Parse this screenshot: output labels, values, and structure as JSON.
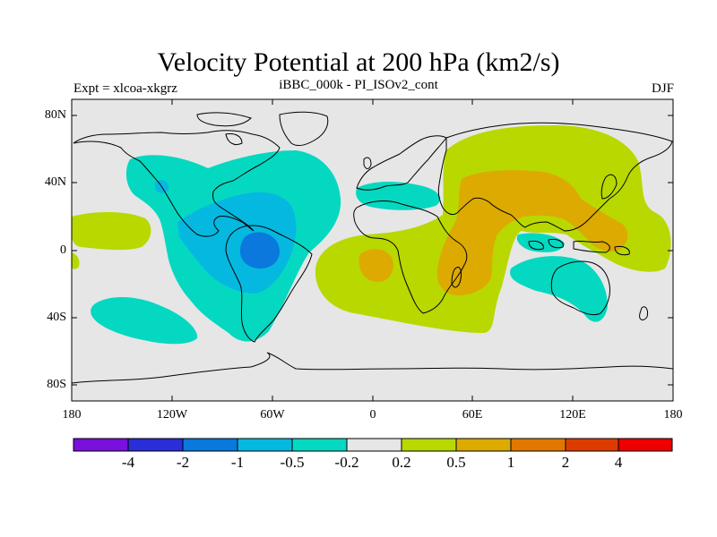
{
  "title": "Velocity Potential at 200 hPa (km2/s)",
  "subtitle_left": "Expt = xlcoa-xkgrz",
  "subtitle_center": "iBBC_000k - PI_ISOv2_cont",
  "subtitle_right": "DJF",
  "y_ticks": [
    "80N",
    "40N",
    "0",
    "40S",
    "80S"
  ],
  "x_ticks": [
    "180",
    "120W",
    "60W",
    "0",
    "60E",
    "120E",
    "180"
  ],
  "colorbar": {
    "colors": [
      "#7a10dc",
      "#2a2ed6",
      "#0a78dc",
      "#05b8e0",
      "#05d8c0",
      "#e6e6e6",
      "#b8d800",
      "#dcaa00",
      "#e07800",
      "#dc3c00",
      "#ee0000"
    ],
    "labels": [
      "-4",
      "-2",
      "-1",
      "-0.5",
      "-0.2",
      "0.2",
      "0.5",
      "1",
      "2",
      "4"
    ]
  },
  "colors": {
    "background": "#e6e6e6",
    "neg_weak": "#05d8c0",
    "neg_mid": "#05b8e0",
    "neg_strong": "#0a78dc",
    "pos_weak": "#b8d800",
    "pos_mid": "#dcaa00"
  }
}
